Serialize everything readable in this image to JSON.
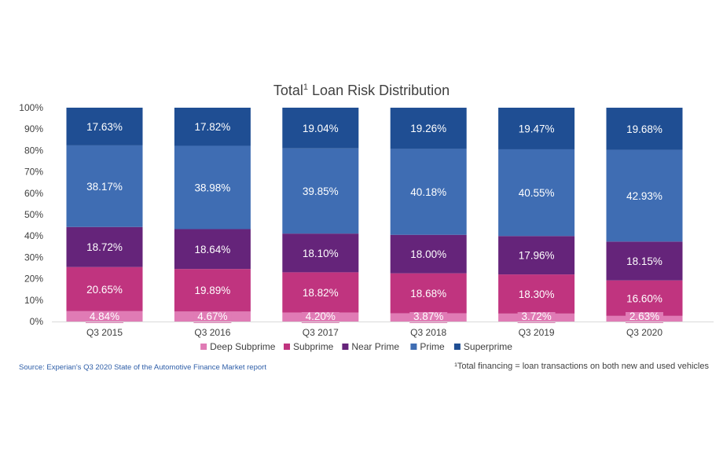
{
  "chart_data": {
    "type": "bar",
    "stacked": true,
    "title_main": "Total",
    "title_sup": "1",
    "title_rest": " Loan Risk Distribution",
    "categories": [
      "Q3 2015",
      "Q3 2016",
      "Q3 2017",
      "Q3 2018",
      "Q3 2019",
      "Q3 2020"
    ],
    "series": [
      {
        "name": "Deep Subprime",
        "color": "#e07bb5",
        "values": [
          4.84,
          4.67,
          4.2,
          3.87,
          3.72,
          2.63
        ],
        "labels": [
          "4.84%",
          "4.67%",
          "4.20%",
          "3.87%",
          "3.72%",
          "2.63%"
        ]
      },
      {
        "name": "Subprime",
        "color": "#c0347f",
        "values": [
          20.65,
          19.89,
          18.82,
          18.68,
          18.3,
          16.6
        ],
        "labels": [
          "20.65%",
          "19.89%",
          "18.82%",
          "18.68%",
          "18.30%",
          "16.60%"
        ]
      },
      {
        "name": "Near Prime",
        "color": "#65247a",
        "values": [
          18.72,
          18.64,
          18.1,
          18.0,
          17.96,
          18.15
        ],
        "labels": [
          "18.72%",
          "18.64%",
          "18.10%",
          "18.00%",
          "17.96%",
          "18.15%"
        ]
      },
      {
        "name": "Prime",
        "color": "#3f6db3",
        "values": [
          38.17,
          38.98,
          39.85,
          40.18,
          40.55,
          42.93
        ],
        "labels": [
          "38.17%",
          "38.98%",
          "39.85%",
          "40.18%",
          "40.55%",
          "42.93%"
        ]
      },
      {
        "name": "Superprime",
        "color": "#1f4e93",
        "values": [
          17.63,
          17.82,
          19.04,
          19.26,
          19.47,
          19.68
        ],
        "labels": [
          "17.63%",
          "17.82%",
          "19.04%",
          "19.26%",
          "19.47%",
          "19.68%"
        ]
      }
    ],
    "yticks": [
      "0%",
      "10%",
      "20%",
      "30%",
      "40%",
      "50%",
      "60%",
      "70%",
      "80%",
      "90%",
      "100%"
    ],
    "ylim": [
      0,
      100
    ],
    "legend_position": "bottom",
    "grid": false
  },
  "source": "Source: Experian's Q3 2020 State of the Automotive Finance Market report",
  "footnote": "¹Total financing = loan transactions on both new and used vehicles"
}
